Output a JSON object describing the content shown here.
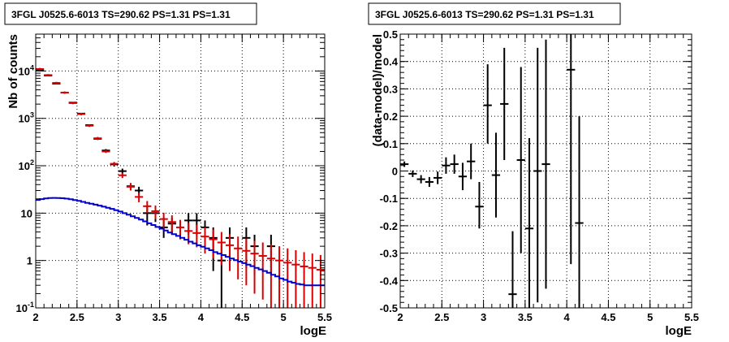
{
  "chart_data": [
    {
      "type": "scatter",
      "title": "3FGL J0525.6-6013 TS=290.62 PS=1.31 PS=1.31",
      "xlabel": "logE",
      "ylabel": "Nb of counts",
      "xlim": [
        2,
        5.5
      ],
      "ylim": [
        0.1,
        60000
      ],
      "yscale": "log",
      "grid": true,
      "xticks": [
        "2",
        "2.5",
        "3",
        "3.5",
        "4",
        "4.5",
        "5",
        "5.5"
      ],
      "yticks": [
        {
          "value": 0.1,
          "label": "10",
          "exp": "-1"
        },
        {
          "value": 1,
          "label": "1",
          "exp": ""
        },
        {
          "value": 10,
          "label": "10",
          "exp": ""
        },
        {
          "value": 100,
          "label": "10",
          "exp": "2"
        },
        {
          "value": 1000,
          "label": "10",
          "exp": "3"
        },
        {
          "value": 10000,
          "label": "10",
          "exp": "4"
        }
      ],
      "series": [
        {
          "kind": "points",
          "color": "#000000",
          "points": [
            {
              "x": 2.05,
              "y": 10600,
              "ylo": 10500,
              "yhi": 10700
            },
            {
              "x": 2.15,
              "y": 8000,
              "ylo": 7900,
              "yhi": 8100
            },
            {
              "x": 2.25,
              "y": 5400,
              "ylo": 5300,
              "yhi": 5500
            },
            {
              "x": 2.35,
              "y": 3500,
              "ylo": 3420,
              "yhi": 3580
            },
            {
              "x": 2.45,
              "y": 2150,
              "ylo": 2100,
              "yhi": 2200
            },
            {
              "x": 2.55,
              "y": 1260,
              "ylo": 1220,
              "yhi": 1300
            },
            {
              "x": 2.65,
              "y": 720,
              "ylo": 690,
              "yhi": 750
            },
            {
              "x": 2.75,
              "y": 370,
              "ylo": 350,
              "yhi": 390
            },
            {
              "x": 2.85,
              "y": 210,
              "ylo": 195,
              "yhi": 225
            },
            {
              "x": 2.95,
              "y": 107,
              "ylo": 96,
              "yhi": 118
            },
            {
              "x": 3.05,
              "y": 77,
              "ylo": 67,
              "yhi": 87
            },
            {
              "x": 3.15,
              "y": 37,
              "ylo": 31,
              "yhi": 43
            },
            {
              "x": 3.25,
              "y": 30,
              "ylo": 24,
              "yhi": 36
            },
            {
              "x": 3.35,
              "y": 10,
              "ylo": 5.5,
              "yhi": 14
            },
            {
              "x": 3.45,
              "y": 10,
              "ylo": 6.5,
              "yhi": 13.5
            },
            {
              "x": 3.55,
              "y": 5,
              "ylo": 3,
              "yhi": 8
            },
            {
              "x": 3.65,
              "y": 6,
              "ylo": 3.6,
              "yhi": 8
            },
            {
              "x": 3.85,
              "y": 7,
              "ylo": 3.5,
              "yhi": 10
            },
            {
              "x": 3.95,
              "y": 7,
              "ylo": 3.5,
              "yhi": 10
            },
            {
              "x": 4.05,
              "y": 5,
              "ylo": 2.5,
              "yhi": 7
            },
            {
              "x": 4.15,
              "y": 3,
              "ylo": 0.6,
              "yhi": 5
            },
            {
              "x": 4.25,
              "y": 1,
              "ylo": 0.1,
              "yhi": 2.2
            },
            {
              "x": 4.35,
              "y": 3,
              "ylo": 0.7,
              "yhi": 5
            },
            {
              "x": 4.55,
              "y": 3,
              "ylo": 0.7,
              "yhi": 5
            },
            {
              "x": 4.65,
              "y": 2,
              "ylo": 0.5,
              "yhi": 3.5
            },
            {
              "x": 4.85,
              "y": 2,
              "ylo": 0.5,
              "yhi": 3.5
            }
          ]
        },
        {
          "kind": "points",
          "color": "#dd0000",
          "points": [
            {
              "x": 2.05,
              "y": 11000,
              "ylo": 10400,
              "yhi": 11600
            },
            {
              "x": 2.15,
              "y": 8200,
              "ylo": 7800,
              "yhi": 8600
            },
            {
              "x": 2.25,
              "y": 5600,
              "ylo": 5300,
              "yhi": 5900
            },
            {
              "x": 2.35,
              "y": 3500,
              "ylo": 3300,
              "yhi": 3700
            },
            {
              "x": 2.45,
              "y": 2100,
              "ylo": 1990,
              "yhi": 2210
            },
            {
              "x": 2.55,
              "y": 1230,
              "ylo": 1160,
              "yhi": 1300
            },
            {
              "x": 2.65,
              "y": 700,
              "ylo": 660,
              "yhi": 740
            },
            {
              "x": 2.75,
              "y": 380,
              "ylo": 355,
              "yhi": 405
            },
            {
              "x": 2.85,
              "y": 200,
              "ylo": 186,
              "yhi": 214
            },
            {
              "x": 2.95,
              "y": 110,
              "ylo": 100,
              "yhi": 120
            },
            {
              "x": 3.05,
              "y": 63,
              "ylo": 55,
              "yhi": 71
            },
            {
              "x": 3.15,
              "y": 36,
              "ylo": 30,
              "yhi": 42
            },
            {
              "x": 3.25,
              "y": 22,
              "ylo": 17,
              "yhi": 27
            },
            {
              "x": 3.35,
              "y": 14,
              "ylo": 10,
              "yhi": 18
            },
            {
              "x": 3.45,
              "y": 11,
              "ylo": 7.5,
              "yhi": 14.5
            },
            {
              "x": 3.55,
              "y": 7.5,
              "ylo": 4.8,
              "yhi": 10.2
            },
            {
              "x": 3.65,
              "y": 6.5,
              "ylo": 4,
              "yhi": 9
            },
            {
              "x": 3.75,
              "y": 5,
              "ylo": 2.8,
              "yhi": 7.2
            },
            {
              "x": 3.85,
              "y": 4.2,
              "ylo": 2.2,
              "yhi": 6.2
            },
            {
              "x": 3.95,
              "y": 3.8,
              "ylo": 1.9,
              "yhi": 5.7
            },
            {
              "x": 4.05,
              "y": 3.2,
              "ylo": 1.4,
              "yhi": 5
            },
            {
              "x": 4.15,
              "y": 2.8,
              "ylo": 1.1,
              "yhi": 4.5
            },
            {
              "x": 4.25,
              "y": 2.4,
              "ylo": 0.8,
              "yhi": 4
            },
            {
              "x": 4.35,
              "y": 2.1,
              "ylo": 0.6,
              "yhi": 3.6
            },
            {
              "x": 4.45,
              "y": 1.8,
              "ylo": 0.4,
              "yhi": 3.2
            },
            {
              "x": 4.55,
              "y": 1.6,
              "ylo": 0.3,
              "yhi": 2.9
            },
            {
              "x": 4.65,
              "y": 1.4,
              "ylo": 0.2,
              "yhi": 2.6
            },
            {
              "x": 4.75,
              "y": 1.25,
              "ylo": 0.15,
              "yhi": 2.4
            },
            {
              "x": 4.85,
              "y": 1.1,
              "ylo": 0.1,
              "yhi": 2.2
            },
            {
              "x": 4.95,
              "y": 1,
              "ylo": 0.1,
              "yhi": 2
            },
            {
              "x": 5.05,
              "y": 0.9,
              "ylo": 0.1,
              "yhi": 1.8
            },
            {
              "x": 5.15,
              "y": 0.82,
              "ylo": 0.1,
              "yhi": 1.65
            },
            {
              "x": 5.25,
              "y": 0.75,
              "ylo": 0.1,
              "yhi": 1.5
            },
            {
              "x": 5.35,
              "y": 0.7,
              "ylo": 0.1,
              "yhi": 1.4
            },
            {
              "x": 5.45,
              "y": 0.64,
              "ylo": 0.1,
              "yhi": 1.3
            }
          ]
        },
        {
          "kind": "step",
          "color": "#0000cc",
          "x0": 2.0,
          "dx": 0.05,
          "values": [
            19.0,
            19.8,
            20.5,
            20.9,
            21.0,
            20.9,
            20.6,
            20.2,
            19.6,
            18.9,
            18.1,
            17.3,
            16.5,
            15.8,
            15.1,
            14.4,
            13.7,
            13.0,
            12.3,
            11.5,
            10.8,
            10.0,
            9.3,
            8.6,
            7.9,
            7.3,
            6.7,
            6.1,
            5.6,
            5.1,
            4.7,
            4.3,
            3.9,
            3.6,
            3.3,
            3.0,
            2.75,
            2.5,
            2.3,
            2.1,
            1.95,
            1.8,
            1.65,
            1.5,
            1.4,
            1.3,
            1.2,
            1.1,
            1.02,
            0.95,
            0.88,
            0.82,
            0.76,
            0.7,
            0.65,
            0.6,
            0.55,
            0.5,
            0.46,
            0.42,
            0.39,
            0.36,
            0.34,
            0.32,
            0.31,
            0.3,
            0.3,
            0.3,
            0.3,
            0.3
          ]
        }
      ]
    },
    {
      "type": "scatter",
      "title": "3FGL J0525.6-6013 TS=290.62 PS=1.31 PS=1.31",
      "xlabel": "logE",
      "ylabel": "(data-model)/model",
      "xlim": [
        2,
        5.5
      ],
      "ylim": [
        -0.5,
        0.5
      ],
      "grid": true,
      "xticks": [
        "2",
        "2.5",
        "3",
        "3.5",
        "4",
        "4.5",
        "5",
        "5.5"
      ],
      "yticks": [
        "-0.5",
        "-0.4",
        "-0.3",
        "-0.2",
        "-0.1",
        "0",
        "0.1",
        "0.2",
        "0.3",
        "0.4",
        "0.5"
      ],
      "series": [
        {
          "kind": "points",
          "color": "#000000",
          "points": [
            {
              "x": 2.05,
              "y": 0.025,
              "ylo": 0.015,
              "yhi": 0.035
            },
            {
              "x": 2.15,
              "y": -0.01,
              "ylo": -0.022,
              "yhi": 0.002
            },
            {
              "x": 2.25,
              "y": -0.03,
              "ylo": -0.045,
              "yhi": -0.015
            },
            {
              "x": 2.35,
              "y": -0.04,
              "ylo": -0.058,
              "yhi": -0.022
            },
            {
              "x": 2.45,
              "y": -0.025,
              "ylo": -0.048,
              "yhi": -0.002
            },
            {
              "x": 2.55,
              "y": 0.02,
              "ylo": -0.01,
              "yhi": 0.05
            },
            {
              "x": 2.65,
              "y": 0.025,
              "ylo": -0.01,
              "yhi": 0.06
            },
            {
              "x": 2.75,
              "y": -0.02,
              "ylo": -0.07,
              "yhi": 0.03
            },
            {
              "x": 2.85,
              "y": 0.035,
              "ylo": -0.03,
              "yhi": 0.1
            },
            {
              "x": 2.95,
              "y": -0.13,
              "ylo": -0.21,
              "yhi": -0.04
            },
            {
              "x": 3.05,
              "y": 0.24,
              "ylo": 0.1,
              "yhi": 0.39
            },
            {
              "x": 3.15,
              "y": -0.015,
              "ylo": -0.17,
              "yhi": 0.14
            },
            {
              "x": 3.25,
              "y": 0.245,
              "ylo": 0.04,
              "yhi": 0.45
            },
            {
              "x": 3.35,
              "y": -0.45,
              "ylo": -0.62,
              "yhi": -0.22
            },
            {
              "x": 3.45,
              "y": 0.04,
              "ylo": -0.3,
              "yhi": 0.38
            },
            {
              "x": 3.55,
              "y": -0.21,
              "ylo": -0.53,
              "yhi": 0.12
            },
            {
              "x": 3.65,
              "y": 0.0,
              "ylo": -0.48,
              "yhi": 0.45
            },
            {
              "x": 3.75,
              "y": 0.025,
              "ylo": -0.43,
              "yhi": 0.48
            },
            {
              "x": 4.05,
              "y": 0.37,
              "ylo": -0.34,
              "yhi": 0.55
            },
            {
              "x": 4.15,
              "y": -0.19,
              "ylo": -0.58,
              "yhi": 0.2
            }
          ]
        }
      ]
    }
  ]
}
